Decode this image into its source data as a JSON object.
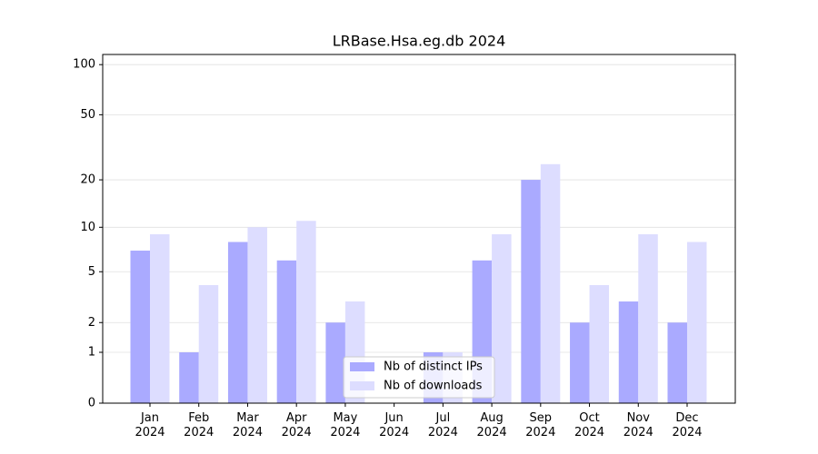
{
  "chart_data": {
    "type": "bar",
    "title": "LRBase.Hsa.eg.db 2024",
    "categories": [
      "Jan\n2024",
      "Feb\n2024",
      "Mar\n2024",
      "Apr\n2024",
      "May\n2024",
      "Jun\n2024",
      "Jul\n2024",
      "Aug\n2024",
      "Sep\n2024",
      "Oct\n2024",
      "Nov\n2024",
      "Dec\n2024"
    ],
    "series": [
      {
        "name": "Nb of distinct IPs",
        "color": "#aaaaff",
        "values": [
          7,
          1,
          8,
          6,
          2,
          0,
          1,
          6,
          20,
          2,
          3,
          2
        ]
      },
      {
        "name": "Nb of downloads",
        "color": "#ddddff",
        "values": [
          9,
          4,
          10,
          11,
          3,
          0,
          1,
          9,
          25,
          4,
          9,
          8
        ]
      }
    ],
    "yscale": "log1p",
    "ylim": [
      0,
      115
    ],
    "yticks": [
      0,
      1,
      2,
      5,
      10,
      20,
      50,
      100
    ],
    "grid": true,
    "legend": "lower center"
  }
}
